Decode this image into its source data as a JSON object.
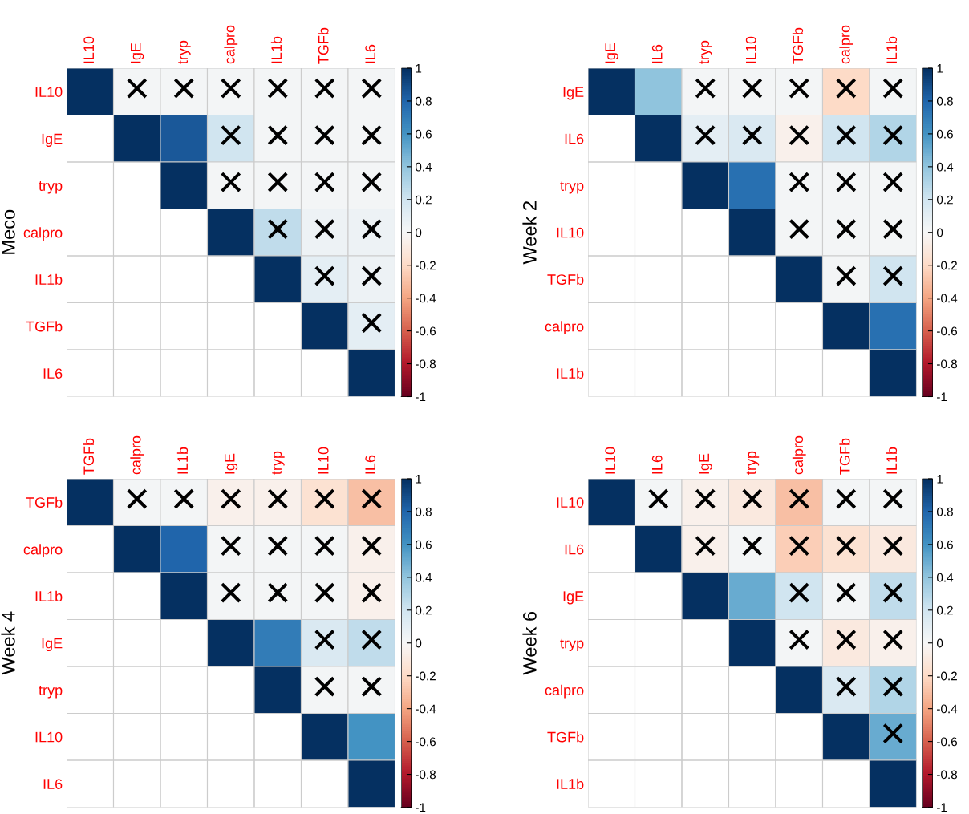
{
  "chart_data": [
    {
      "type": "heatmap",
      "ylabel": "Meco",
      "categories": [
        "IL10",
        "IgE",
        "tryp",
        "calpro",
        "IL1b",
        "TGFb",
        "IL6"
      ],
      "y_categories": [
        "IL10",
        "IgE",
        "tryp",
        "calpro",
        "IL1b",
        "TGFb",
        "IL6"
      ],
      "cells": [
        [
          1,
          0.02,
          0.02,
          0.02,
          0.02,
          0.02,
          0.02
        ],
        [
          null,
          1,
          0.85,
          0.2,
          0.02,
          0.02,
          0.02
        ],
        [
          null,
          null,
          1,
          0.02,
          0.02,
          0.02,
          0.02
        ],
        [
          null,
          null,
          null,
          1,
          0.25,
          0.05,
          0.05
        ],
        [
          null,
          null,
          null,
          null,
          1,
          0.1,
          0.05
        ],
        [
          null,
          null,
          null,
          null,
          null,
          1,
          0.1
        ],
        [
          null,
          null,
          null,
          null,
          null,
          null,
          1
        ]
      ],
      "cell_labels": [
        [
          null,
          "×",
          "×",
          "×",
          "×",
          "×",
          "×"
        ],
        [
          null,
          null,
          null,
          "×",
          "×",
          "×",
          "×"
        ],
        [
          null,
          null,
          null,
          "×",
          "×",
          "×",
          "×"
        ],
        [
          null,
          null,
          null,
          null,
          "×",
          "×",
          "×"
        ],
        [
          null,
          null,
          null,
          null,
          null,
          "×",
          "×"
        ],
        [
          null,
          null,
          null,
          null,
          null,
          null,
          "×"
        ],
        [
          null,
          null,
          null,
          null,
          null,
          null,
          null
        ]
      ],
      "clim": [
        -1,
        1
      ],
      "cticks": [
        -1,
        -0.8,
        -0.6,
        -0.4,
        -0.2,
        0,
        0.2,
        0.4,
        0.6,
        0.8,
        1
      ]
    },
    {
      "type": "heatmap",
      "ylabel": "Week 2",
      "categories": [
        "IgE",
        "IL6",
        "tryp",
        "IL10",
        "TGFb",
        "calpro",
        "IL1b"
      ],
      "y_categories": [
        "IgE",
        "IL6",
        "tryp",
        "IL10",
        "TGFb",
        "calpro",
        "IL1b"
      ],
      "cells": [
        [
          1,
          0.4,
          0.02,
          0.02,
          0.02,
          -0.2,
          0.02
        ],
        [
          null,
          1,
          0.1,
          0.15,
          -0.05,
          0.2,
          0.3
        ],
        [
          null,
          null,
          1,
          0.75,
          0.02,
          0.02,
          0.02
        ],
        [
          null,
          null,
          null,
          1,
          0.02,
          0.02,
          0.02
        ],
        [
          null,
          null,
          null,
          null,
          1,
          0.02,
          0.2
        ],
        [
          null,
          null,
          null,
          null,
          null,
          1,
          0.75
        ],
        [
          null,
          null,
          null,
          null,
          null,
          null,
          1
        ]
      ],
      "cell_labels": [
        [
          null,
          null,
          "×",
          "×",
          "×",
          "×",
          "×"
        ],
        [
          null,
          null,
          "×",
          "×",
          "×",
          "×",
          "×"
        ],
        [
          null,
          null,
          null,
          null,
          "×",
          "×",
          "×"
        ],
        [
          null,
          null,
          null,
          null,
          "×",
          "×",
          "×"
        ],
        [
          null,
          null,
          null,
          null,
          null,
          "×",
          "×"
        ],
        [
          null,
          null,
          null,
          null,
          null,
          null,
          null
        ],
        [
          null,
          null,
          null,
          null,
          null,
          null,
          null
        ]
      ],
      "clim": [
        -1,
        1
      ],
      "cticks": [
        -1,
        -0.8,
        -0.6,
        -0.4,
        -0.2,
        0,
        0.2,
        0.4,
        0.6,
        0.8,
        1
      ]
    },
    {
      "type": "heatmap",
      "ylabel": "Week 4",
      "categories": [
        "TGFb",
        "calpro",
        "IL1b",
        "IgE",
        "tryp",
        "IL10",
        "IL6"
      ],
      "y_categories": [
        "TGFb",
        "calpro",
        "IL1b",
        "IgE",
        "tryp",
        "IL10",
        "IL6"
      ],
      "cells": [
        [
          1,
          0.02,
          0.02,
          -0.05,
          -0.05,
          -0.15,
          -0.3
        ],
        [
          null,
          1,
          0.8,
          0.02,
          0.02,
          0.02,
          -0.05
        ],
        [
          null,
          null,
          1,
          0.02,
          0.02,
          0.02,
          -0.05
        ],
        [
          null,
          null,
          null,
          1,
          0.7,
          0.15,
          0.25
        ],
        [
          null,
          null,
          null,
          null,
          1,
          0.02,
          0.02
        ],
        [
          null,
          null,
          null,
          null,
          null,
          1,
          0.6
        ],
        [
          null,
          null,
          null,
          null,
          null,
          null,
          1
        ]
      ],
      "cell_labels": [
        [
          null,
          "×",
          "×",
          "×",
          "×",
          "×",
          "×"
        ],
        [
          null,
          null,
          null,
          "×",
          "×",
          "×",
          "×"
        ],
        [
          null,
          null,
          null,
          "×",
          "×",
          "×",
          "×"
        ],
        [
          null,
          null,
          null,
          null,
          null,
          "×",
          "×"
        ],
        [
          null,
          null,
          null,
          null,
          null,
          "×",
          "×"
        ],
        [
          null,
          null,
          null,
          null,
          null,
          null,
          null
        ],
        [
          null,
          null,
          null,
          null,
          null,
          null,
          null
        ]
      ],
      "clim": [
        -1,
        1
      ],
      "cticks": [
        -1,
        -0.8,
        -0.6,
        -0.4,
        -0.2,
        0,
        0.2,
        0.4,
        0.6,
        0.8,
        1
      ]
    },
    {
      "type": "heatmap",
      "ylabel": "Week 6",
      "categories": [
        "IL10",
        "IL6",
        "IgE",
        "tryp",
        "calpro",
        "TGFb",
        "IL1b"
      ],
      "y_categories": [
        "IL10",
        "IL6",
        "IgE",
        "tryp",
        "calpro",
        "TGFb",
        "IL1b"
      ],
      "cells": [
        [
          1,
          0.02,
          -0.05,
          -0.1,
          -0.3,
          0.02,
          0.02
        ],
        [
          null,
          1,
          -0.05,
          0.02,
          -0.25,
          -0.15,
          -0.1
        ],
        [
          null,
          null,
          1,
          0.5,
          0.2,
          0.02,
          0.25
        ],
        [
          null,
          null,
          null,
          1,
          0.02,
          -0.1,
          -0.05
        ],
        [
          null,
          null,
          null,
          null,
          1,
          0.15,
          0.3
        ],
        [
          null,
          null,
          null,
          null,
          null,
          1,
          0.5
        ],
        [
          null,
          null,
          null,
          null,
          null,
          null,
          1
        ]
      ],
      "cell_labels": [
        [
          null,
          "×",
          "×",
          "×",
          "×",
          "×",
          "×"
        ],
        [
          null,
          null,
          "×",
          "×",
          "×",
          "×",
          "×"
        ],
        [
          null,
          null,
          null,
          null,
          "×",
          "×",
          "×"
        ],
        [
          null,
          null,
          null,
          null,
          "×",
          "×",
          "×"
        ],
        [
          null,
          null,
          null,
          null,
          null,
          "×",
          "×"
        ],
        [
          null,
          null,
          null,
          null,
          null,
          null,
          "×"
        ],
        [
          null,
          null,
          null,
          null,
          null,
          null,
          null
        ]
      ],
      "clim": [
        -1,
        1
      ],
      "cticks": [
        -1,
        -0.8,
        -0.6,
        -0.4,
        -0.2,
        0,
        0.2,
        0.4,
        0.6,
        0.8,
        1
      ]
    }
  ]
}
